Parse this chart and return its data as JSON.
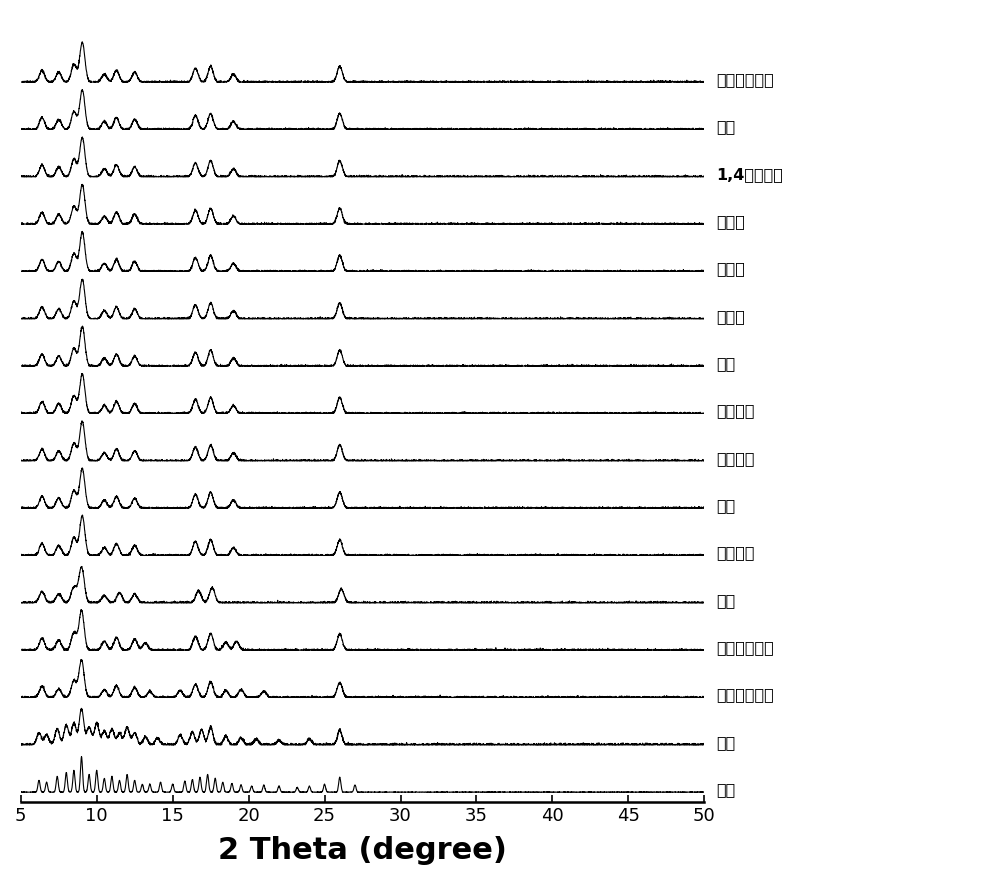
{
  "labels": [
    "模拟",
    "合成",
    "二甲基甲酰胺",
    "二甲基乙酰胺",
    "乙醇",
    "四氢呋喃",
    "乙醚",
    "乙酸乙酯",
    "二氯甲烷",
    "氯仿",
    "正己烷",
    "环己烷",
    "正戊烷",
    "1,4环氧六环",
    "甲苯",
    "乙二醇二甲醚"
  ],
  "bold_label_index": 13,
  "xlim": [
    5,
    50
  ],
  "xlabel": "2 Theta (degree)",
  "background_color": "#ffffff",
  "line_color": "#000000",
  "xticks": [
    5,
    10,
    15,
    20,
    25,
    30,
    35,
    40,
    45,
    50
  ]
}
